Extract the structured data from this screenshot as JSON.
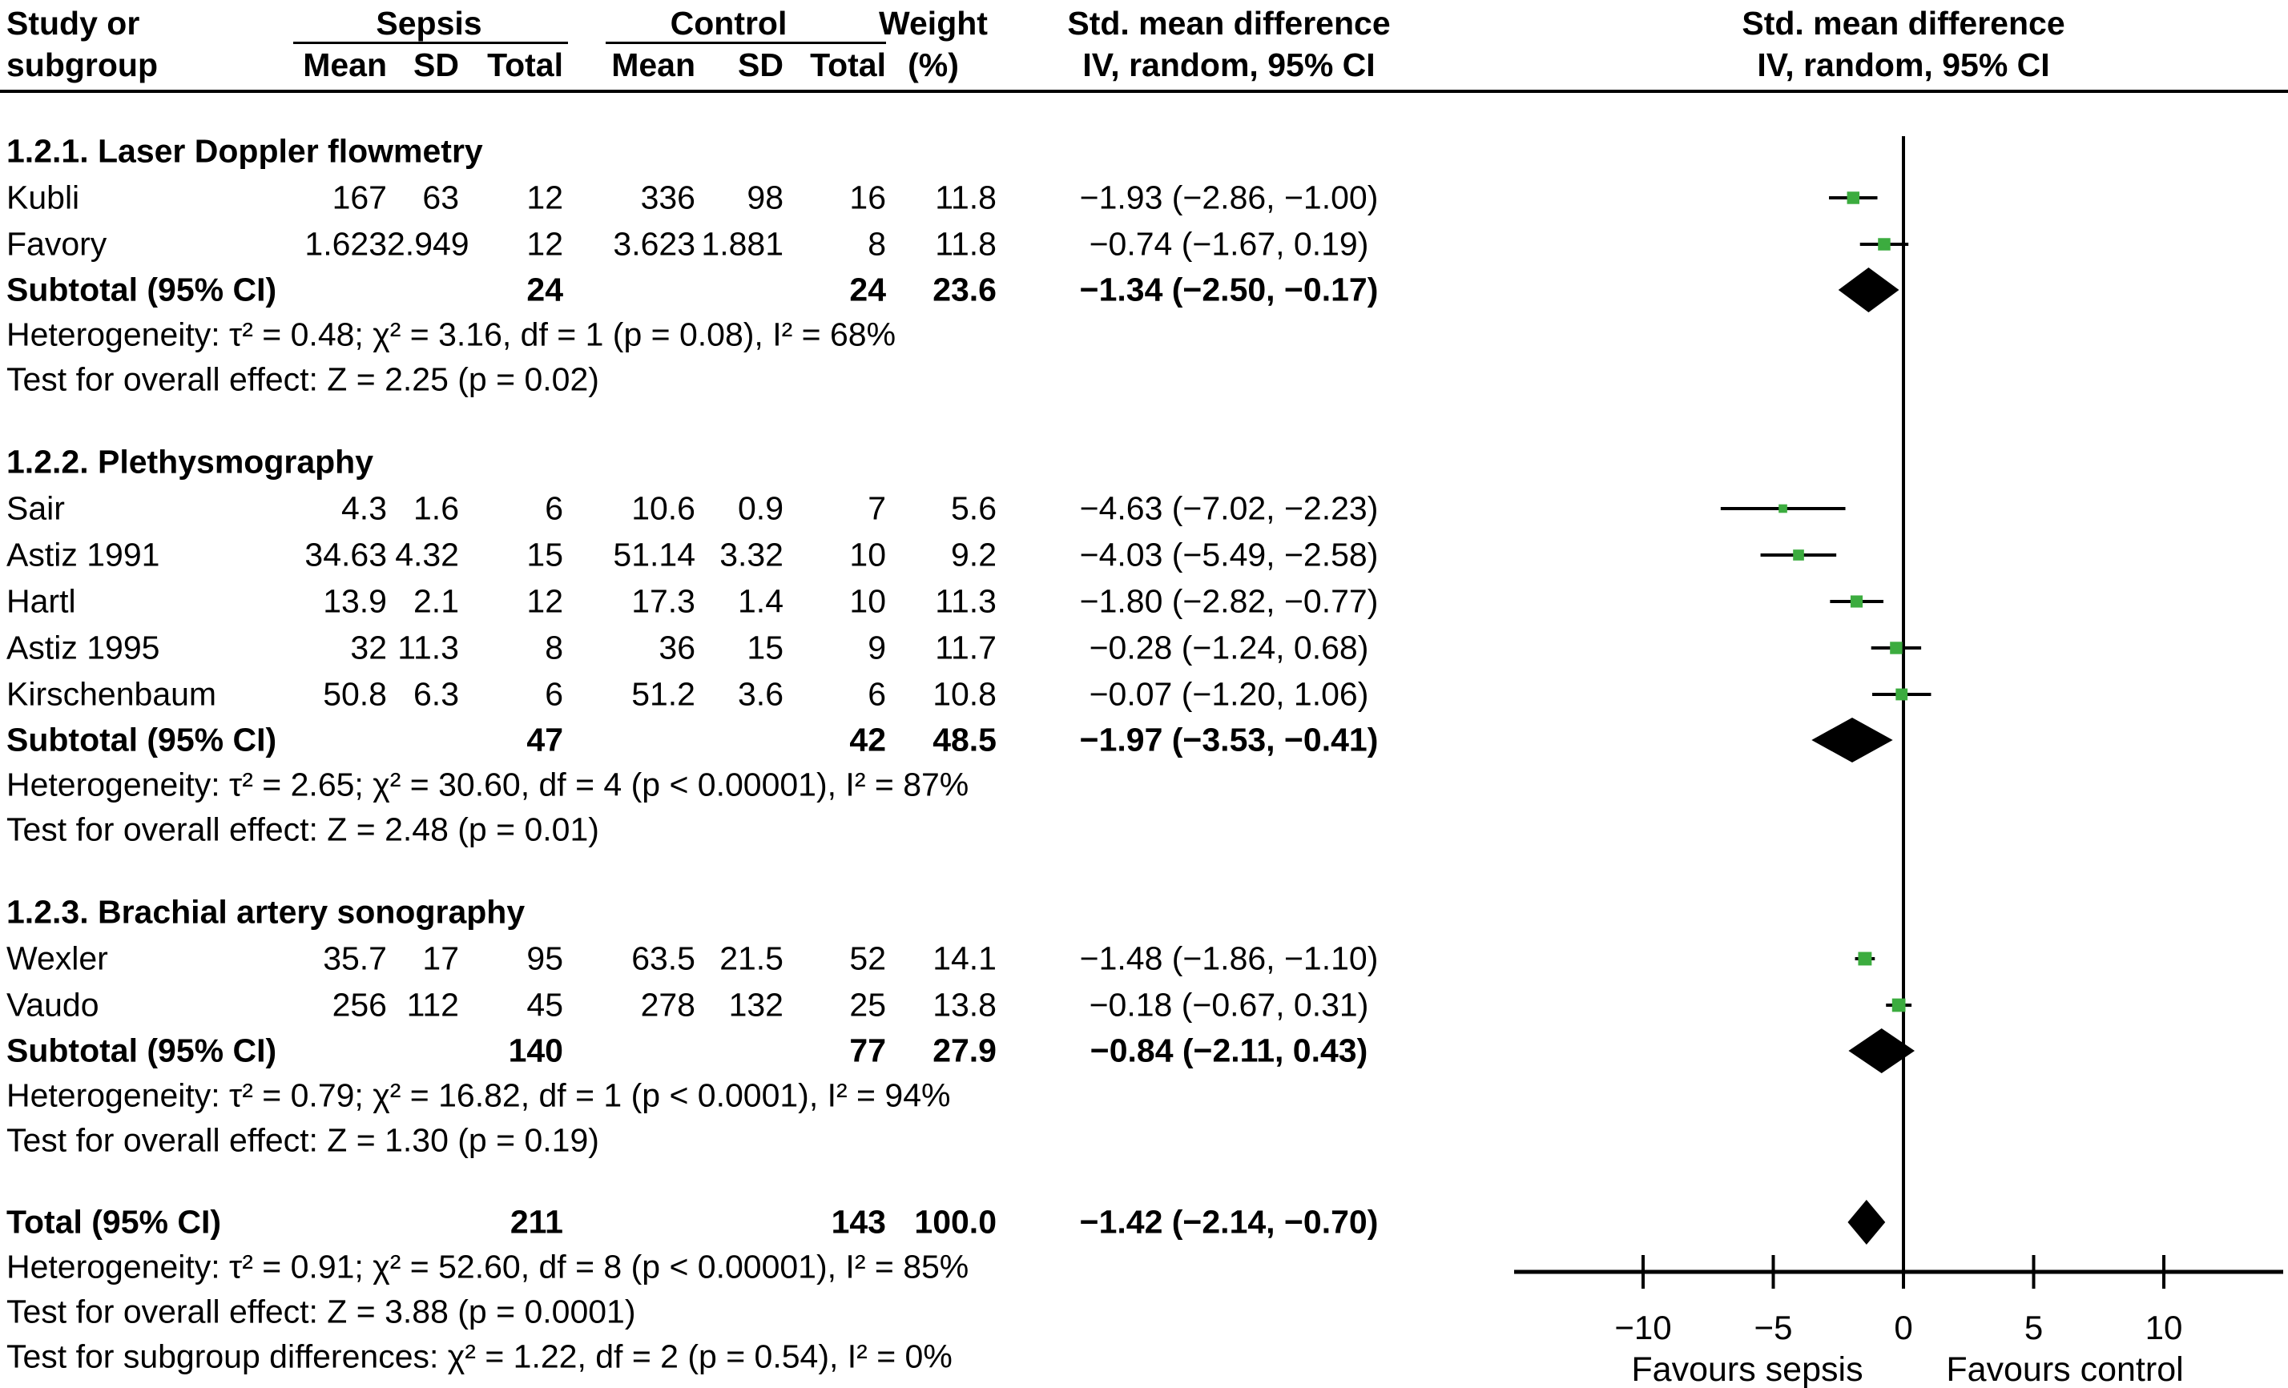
{
  "header": {
    "col1_line1": "Study or",
    "col1_line2": "subgroup",
    "group_sepsis": "Sepsis",
    "group_control": "Control",
    "sub_mean": "Mean",
    "sub_sd": "SD",
    "sub_total": "Total",
    "weight_line1": "Weight",
    "weight_line2": "(%)",
    "smd_line1": "Std. mean difference",
    "smd_line2": "IV, random, 95% CI"
  },
  "colors": {
    "square_green": "#3cac3f",
    "line_black": "#000000"
  },
  "chart_data": {
    "type": "forest",
    "effect_label": "Std. mean difference",
    "method_label": "IV, random, 95% CI",
    "xlim": [
      -10,
      10
    ],
    "ticks": [
      -10,
      -5,
      0,
      5,
      10
    ],
    "tick_labels": [
      "−10",
      "−5",
      "0",
      "5",
      "10"
    ],
    "favours_left": "Favours sepsis",
    "favours_right": "Favours control",
    "sections": [
      {
        "heading": "1.2.1. Laser Doppler flowmetry",
        "studies": [
          {
            "name": "Kubli",
            "sepsis": {
              "mean": "167",
              "sd": "63",
              "total": "12"
            },
            "control": {
              "mean": "336",
              "sd": "98",
              "total": "16"
            },
            "weight": "11.8",
            "weight_num": 11.8,
            "ci_text": "−1.93 (−2.86, −1.00)",
            "est": -1.93,
            "lo": -2.86,
            "hi": -1.0
          },
          {
            "name": "Favory",
            "sepsis": {
              "mean": "1.623",
              "sd": "2.949",
              "total": "12"
            },
            "control": {
              "mean": "3.623",
              "sd": "1.881",
              "total": "8"
            },
            "weight": "11.8",
            "weight_num": 11.8,
            "ci_text": "−0.74 (−1.67, 0.19)",
            "est": -0.74,
            "lo": -1.67,
            "hi": 0.19
          }
        ],
        "subtotal": {
          "label": "Subtotal (95% CI)",
          "sepsis_total": "24",
          "control_total": "24",
          "weight": "23.6",
          "ci_text": "−1.34 (−2.50, −0.17)",
          "est": -1.34,
          "lo": -2.5,
          "hi": -0.17
        },
        "heterogeneity": "Heterogeneity: τ² = 0.48; χ² = 3.16, df = 1 (p = 0.08), I² = 68%",
        "overall_effect": "Test for overall effect: Z = 2.25 (p = 0.02)"
      },
      {
        "heading": "1.2.2. Plethysmography",
        "studies": [
          {
            "name": "Sair",
            "sepsis": {
              "mean": "4.3",
              "sd": "1.6",
              "total": "6"
            },
            "control": {
              "mean": "10.6",
              "sd": "0.9",
              "total": "7"
            },
            "weight": "5.6",
            "weight_num": 5.6,
            "ci_text": "−4.63 (−7.02, −2.23)",
            "est": -4.63,
            "lo": -7.02,
            "hi": -2.23
          },
          {
            "name": "Astiz 1991",
            "sepsis": {
              "mean": "34.63",
              "sd": "4.32",
              "total": "15"
            },
            "control": {
              "mean": "51.14",
              "sd": "3.32",
              "total": "10"
            },
            "weight": "9.2",
            "weight_num": 9.2,
            "ci_text": "−4.03 (−5.49, −2.58)",
            "est": -4.03,
            "lo": -5.49,
            "hi": -2.58
          },
          {
            "name": "Hartl",
            "sepsis": {
              "mean": "13.9",
              "sd": "2.1",
              "total": "12"
            },
            "control": {
              "mean": "17.3",
              "sd": "1.4",
              "total": "10"
            },
            "weight": "11.3",
            "weight_num": 11.3,
            "ci_text": "−1.80 (−2.82, −0.77)",
            "est": -1.8,
            "lo": -2.82,
            "hi": -0.77
          },
          {
            "name": "Astiz 1995",
            "sepsis": {
              "mean": "32",
              "sd": "11.3",
              "total": "8"
            },
            "control": {
              "mean": "36",
              "sd": "15",
              "total": "9"
            },
            "weight": "11.7",
            "weight_num": 11.7,
            "ci_text": "−0.28 (−1.24, 0.68)",
            "est": -0.28,
            "lo": -1.24,
            "hi": 0.68
          },
          {
            "name": "Kirschenbaum",
            "sepsis": {
              "mean": "50.8",
              "sd": "6.3",
              "total": "6"
            },
            "control": {
              "mean": "51.2",
              "sd": "3.6",
              "total": "6"
            },
            "weight": "10.8",
            "weight_num": 10.8,
            "ci_text": "−0.07 (−1.20, 1.06)",
            "est": -0.07,
            "lo": -1.2,
            "hi": 1.06
          }
        ],
        "subtotal": {
          "label": "Subtotal (95% CI)",
          "sepsis_total": "47",
          "control_total": "42",
          "weight": "48.5",
          "ci_text": "−1.97 (−3.53, −0.41)",
          "est": -1.97,
          "lo": -3.53,
          "hi": -0.41
        },
        "heterogeneity": "Heterogeneity: τ² = 2.65; χ² = 30.60, df = 4 (p < 0.00001), I² = 87%",
        "overall_effect": "Test for overall effect: Z = 2.48 (p = 0.01)"
      },
      {
        "heading": "1.2.3. Brachial artery sonography",
        "studies": [
          {
            "name": "Wexler",
            "sepsis": {
              "mean": "35.7",
              "sd": "17",
              "total": "95"
            },
            "control": {
              "mean": "63.5",
              "sd": "21.5",
              "total": "52"
            },
            "weight": "14.1",
            "weight_num": 14.1,
            "ci_text": "−1.48 (−1.86, −1.10)",
            "est": -1.48,
            "lo": -1.86,
            "hi": -1.1
          },
          {
            "name": "Vaudo",
            "sepsis": {
              "mean": "256",
              "sd": "112",
              "total": "45"
            },
            "control": {
              "mean": "278",
              "sd": "132",
              "total": "25"
            },
            "weight": "13.8",
            "weight_num": 13.8,
            "ci_text": "−0.18 (−0.67, 0.31)",
            "est": -0.18,
            "lo": -0.67,
            "hi": 0.31
          }
        ],
        "subtotal": {
          "label": "Subtotal (95% CI)",
          "sepsis_total": "140",
          "control_total": "77",
          "weight": "27.9",
          "ci_text": "−0.84 (−2.11, 0.43)",
          "est": -0.84,
          "lo": -2.11,
          "hi": 0.43
        },
        "heterogeneity": "Heterogeneity: τ² = 0.79; χ² = 16.82, df = 1 (p < 0.0001), I² = 94%",
        "overall_effect": "Test for overall effect: Z = 1.30 (p = 0.19)"
      }
    ],
    "total": {
      "label": "Total (95% CI)",
      "sepsis_total": "211",
      "control_total": "143",
      "weight": "100.0",
      "ci_text": "−1.42 (−2.14, −0.70)",
      "est": -1.42,
      "lo": -2.14,
      "hi": -0.7,
      "heterogeneity": "Heterogeneity: τ² = 0.91; χ² = 52.60, df = 8 (p < 0.00001), I² = 85%",
      "overall_effect": "Test for overall effect: Z = 3.88 (p = 0.0001)",
      "subgroup_diff": "Test for subgroup differences: χ² = 1.22, df = 2 (p = 0.54), I² = 0%"
    }
  }
}
